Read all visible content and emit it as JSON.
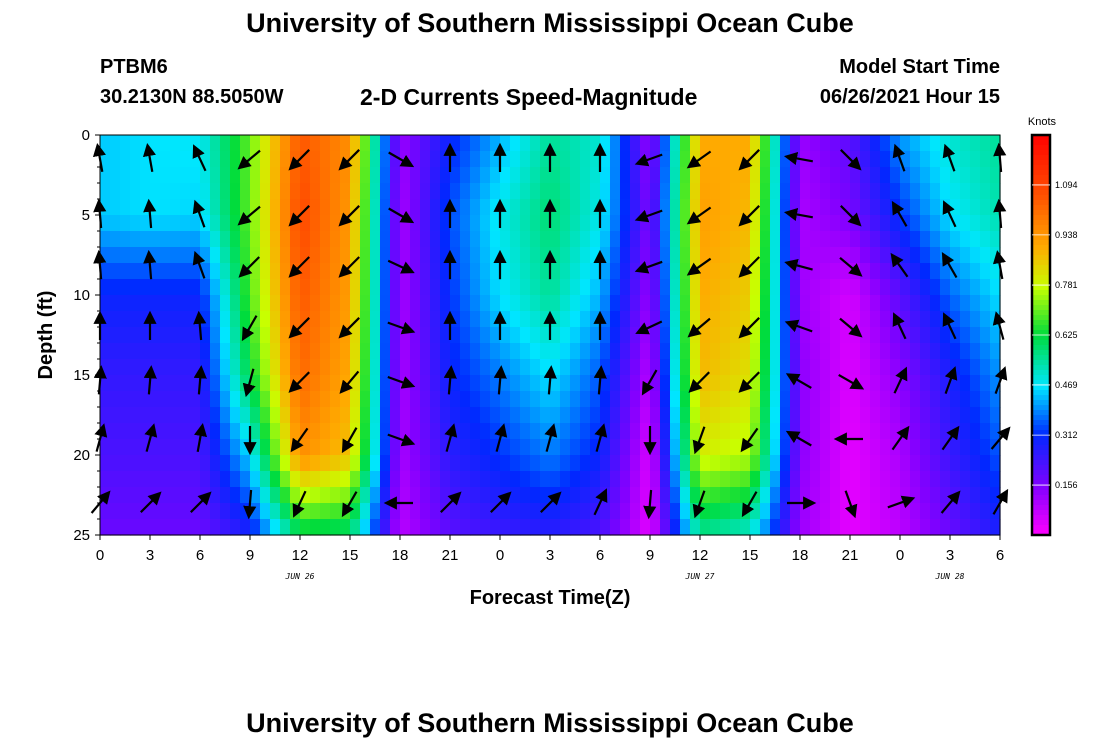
{
  "header": {
    "title": "University of Southern Mississippi Ocean Cube",
    "station_id": "PTBM6",
    "station_coords": "30.2130N  88.5050W",
    "subtitle": "2-D Currents Speed-Magnitude",
    "model_start_label": "Model Start Time",
    "model_start_value": "06/26/2021 Hour 15"
  },
  "footer": {
    "title": "University of Southern Mississippi Ocean Cube"
  },
  "chart_data": {
    "type": "heatmap",
    "title": "2-D Currents Speed-Magnitude",
    "xlabel": "Forecast Time(Z)",
    "ylabel": "Depth (ft)",
    "x_unit": "hours since 2021-06-26 00Z",
    "xlim": [
      0,
      54
    ],
    "ylim": [
      0,
      25
    ],
    "y_inverted": true,
    "x_tick_values": [
      0,
      3,
      6,
      9,
      12,
      15,
      18,
      21,
      24,
      27,
      30,
      33,
      36,
      39,
      42,
      45,
      48,
      51,
      54
    ],
    "x_tick_labels": [
      "0",
      "3",
      "6",
      "9",
      "12",
      "15",
      "18",
      "21",
      "0",
      "3",
      "6",
      "9",
      "12",
      "15",
      "18",
      "21",
      "0",
      "3",
      "6"
    ],
    "y_tick_values": [
      0,
      5,
      10,
      15,
      20,
      25
    ],
    "y_tick_labels": [
      "0",
      "5",
      "10",
      "15",
      "20",
      "25"
    ],
    "date_labels": [
      {
        "x": 12,
        "label": "JUN 26"
      },
      {
        "x": 36,
        "label": "JUN 27"
      },
      {
        "x": 51,
        "label": "JUN 28"
      }
    ],
    "colorbar": {
      "unit_label": "Knots",
      "min": 0,
      "max": 1.25,
      "tick_values": [
        0.156,
        0.312,
        0.469,
        0.625,
        0.781,
        0.938,
        1.094
      ],
      "tick_labels": [
        "0.156",
        "0.312",
        "0.469",
        "0.625",
        "0.781",
        "0.938",
        "1.094"
      ]
    },
    "grid": false,
    "series": [
      {
        "x": [
          0,
          3,
          6,
          9,
          12,
          15,
          18,
          21,
          24,
          27,
          30,
          33,
          36,
          39,
          42,
          45,
          48,
          51,
          54
        ],
        "depth": [
          0,
          5,
          10,
          15,
          20,
          25
        ],
        "speed_knots": [
          [
            0.44,
            0.46,
            0.47,
            0.7,
            1.05,
            0.95,
            0.12,
            0.3,
            0.42,
            0.55,
            0.5,
            0.12,
            0.9,
            0.9,
            0.12,
            0.2,
            0.4,
            0.5,
            0.55
          ],
          [
            0.44,
            0.46,
            0.45,
            0.7,
            1.08,
            0.93,
            0.1,
            0.34,
            0.48,
            0.58,
            0.48,
            0.15,
            0.92,
            0.88,
            0.1,
            0.16,
            0.32,
            0.46,
            0.53
          ],
          [
            0.3,
            0.3,
            0.3,
            0.68,
            1.05,
            0.92,
            0.1,
            0.32,
            0.46,
            0.55,
            0.42,
            0.12,
            0.9,
            0.85,
            0.12,
            0.05,
            0.2,
            0.36,
            0.46
          ],
          [
            0.25,
            0.25,
            0.25,
            0.62,
            1.02,
            0.9,
            0.1,
            0.3,
            0.38,
            0.46,
            0.35,
            0.08,
            0.88,
            0.82,
            0.14,
            0.04,
            0.14,
            0.28,
            0.4
          ],
          [
            0.22,
            0.22,
            0.22,
            0.45,
            0.95,
            0.86,
            0.1,
            0.26,
            0.32,
            0.38,
            0.3,
            0.04,
            0.8,
            0.76,
            0.14,
            0.03,
            0.1,
            0.24,
            0.35
          ],
          [
            0.18,
            0.18,
            0.18,
            0.28,
            0.6,
            0.58,
            0.08,
            0.2,
            0.24,
            0.26,
            0.22,
            0.03,
            0.55,
            0.5,
            0.12,
            0.03,
            0.08,
            0.18,
            0.28
          ]
        ]
      }
    ],
    "vectors": {
      "x": [
        0,
        3,
        6,
        9,
        12,
        15,
        18,
        21,
        24,
        27,
        30,
        33,
        36,
        39,
        42,
        45,
        48,
        51,
        54
      ],
      "depth": [
        1.5,
        5,
        8.2,
        12,
        15.4,
        19,
        23
      ],
      "direction_deg_math": [
        [
          100,
          100,
          115,
          220,
          225,
          225,
          330,
          90,
          90,
          90,
          90,
          200,
          215,
          225,
          170,
          315,
          110,
          110,
          95
        ],
        [
          95,
          95,
          110,
          220,
          225,
          225,
          330,
          90,
          90,
          90,
          90,
          200,
          215,
          225,
          170,
          315,
          120,
          115,
          95
        ],
        [
          95,
          95,
          110,
          225,
          225,
          225,
          335,
          90,
          90,
          90,
          90,
          200,
          215,
          225,
          165,
          320,
          125,
          120,
          100
        ],
        [
          90,
          90,
          95,
          240,
          225,
          225,
          340,
          90,
          90,
          90,
          90,
          205,
          220,
          225,
          160,
          320,
          115,
          115,
          105
        ],
        [
          85,
          85,
          85,
          255,
          225,
          230,
          340,
          85,
          85,
          85,
          85,
          240,
          225,
          225,
          150,
          330,
          65,
          70,
          70
        ],
        [
          75,
          75,
          80,
          270,
          235,
          240,
          340,
          75,
          75,
          75,
          75,
          270,
          250,
          235,
          150,
          180,
          55,
          55,
          50
        ],
        [
          50,
          45,
          45,
          265,
          245,
          240,
          180,
          45,
          45,
          45,
          65,
          265,
          250,
          240,
          0,
          290,
          20,
          50,
          60
        ]
      ]
    }
  }
}
